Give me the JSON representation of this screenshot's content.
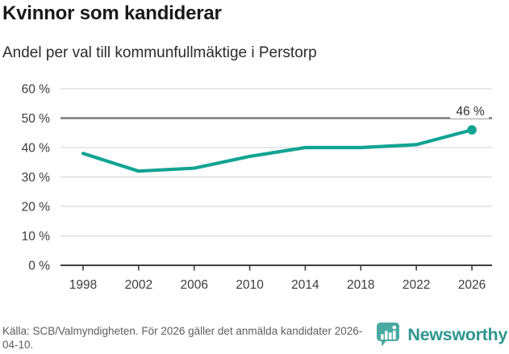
{
  "chart_data": {
    "type": "line",
    "title": "Kvinnor som kandiderar",
    "subtitle": "Andel per val till kommunfullmäktige i Perstorp",
    "x": [
      1998,
      2002,
      2006,
      2010,
      2014,
      2018,
      2022,
      2026
    ],
    "values": [
      38,
      32,
      33,
      37,
      40,
      40,
      41,
      46
    ],
    "end_label": "46 %",
    "ylim": [
      0,
      60
    ],
    "ytick_step": 10,
    "ytick_suffix": " %",
    "grid": true,
    "highlight_gridline_value": 50,
    "legend": "none",
    "line_color": "#12a393",
    "marker": "end-dot-only",
    "source": "Källa: SCB/Valmyndigheten. För 2026 gäller det anmälda kandidater 2026-04-10."
  },
  "footer": {
    "brand": "Newsworthy",
    "brand_color": "#2e968e",
    "logo_color": "#4aaaa2"
  }
}
